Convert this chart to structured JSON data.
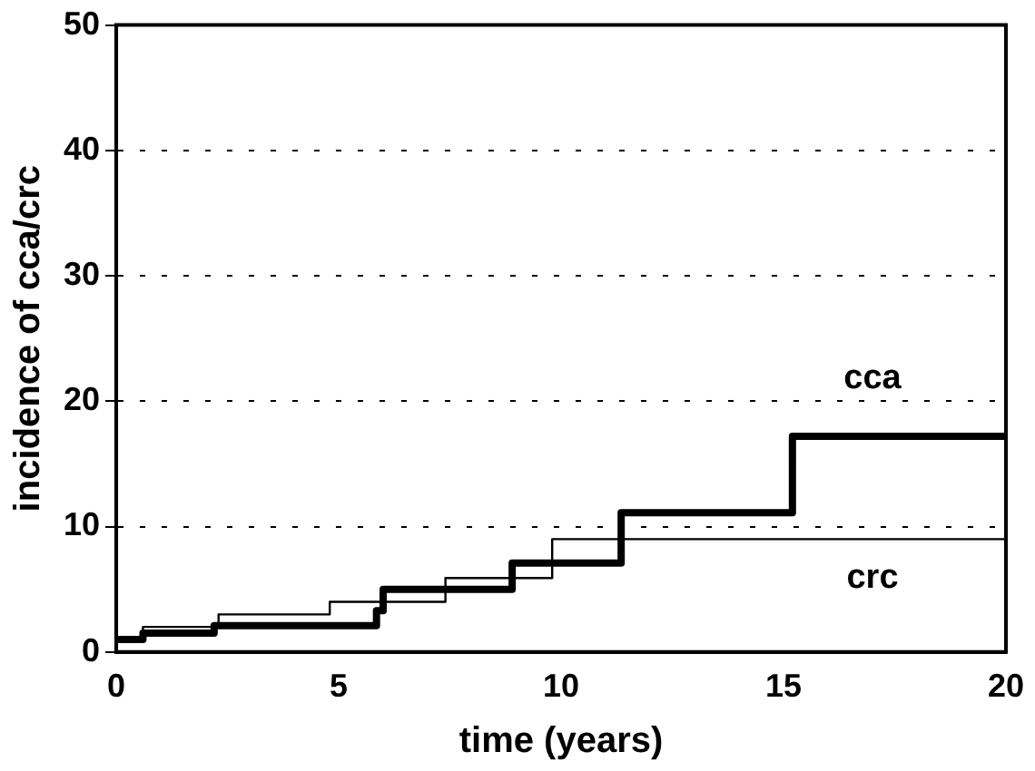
{
  "chart_data": {
    "type": "step",
    "xlabel": "time (years)",
    "ylabel": "incidence of cca/crc",
    "xlim": [
      0,
      20
    ],
    "xticks": [
      0,
      5,
      10,
      15,
      20
    ],
    "ylim": [
      0,
      50
    ],
    "yticks": [
      0,
      10,
      20,
      30,
      40,
      50
    ],
    "grid": "y",
    "legend": false,
    "marker": "none",
    "series": [
      {
        "name": "cca",
        "color": "#000000",
        "x": [
          0,
          0.6,
          2.2,
          5.85,
          6.0,
          8.9,
          11.35,
          15.2,
          20
        ],
        "values": [
          1,
          1.5,
          2.1,
          3.3,
          5,
          7.1,
          11.1,
          17.2,
          17.2
        ]
      },
      {
        "name": "crc",
        "color": "#000000",
        "x": [
          0,
          0.6,
          2.3,
          4.8,
          7.4,
          9.8,
          20
        ],
        "values": [
          1,
          2,
          3,
          4,
          5.9,
          9,
          9
        ]
      }
    ]
  }
}
